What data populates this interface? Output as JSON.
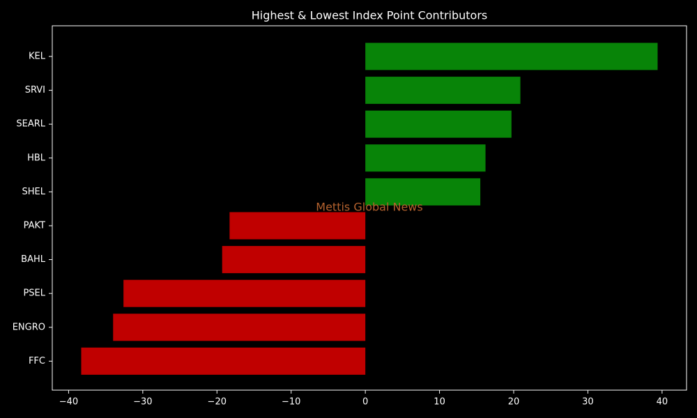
{
  "chart_data": {
    "type": "barh",
    "title": "Highest & Lowest Index Point Contributors",
    "watermark": "Mettis Global News",
    "categories": [
      "KEL",
      "SRVI",
      "SEARL",
      "HBL",
      "SHEL",
      "PAKT",
      "BAHL",
      "PSEL",
      "ENGRO",
      "FFC"
    ],
    "values": [
      39.4,
      20.9,
      19.7,
      16.2,
      15.5,
      -18.3,
      -19.3,
      -32.6,
      -34.0,
      -38.3
    ],
    "colors": [
      "#088408",
      "#088408",
      "#088408",
      "#088408",
      "#088408",
      "#c00000",
      "#c00000",
      "#c00000",
      "#c00000",
      "#c00000"
    ],
    "xlim": [
      -42.2,
      43.3
    ],
    "xticks": [
      {
        "value": -40,
        "label": "−40"
      },
      {
        "value": -30,
        "label": "−30"
      },
      {
        "value": -20,
        "label": "−20"
      },
      {
        "value": -10,
        "label": "−10"
      },
      0,
      10,
      20,
      30,
      40
    ],
    "grid": false
  }
}
